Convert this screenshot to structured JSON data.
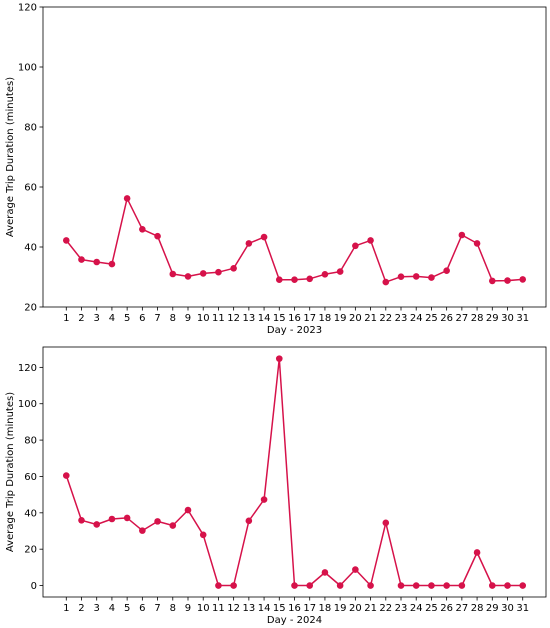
{
  "chart_data": [
    {
      "type": "line",
      "xlabel": "Day - 2023",
      "ylabel": "Average Trip Duration (minutes)",
      "ylim": [
        20,
        120
      ],
      "yticks": [
        20,
        40,
        60,
        80,
        100,
        120
      ],
      "color": "#d6124a",
      "x": [
        1,
        2,
        3,
        4,
        5,
        6,
        7,
        8,
        9,
        10,
        11,
        12,
        13,
        14,
        15,
        16,
        17,
        18,
        19,
        20,
        21,
        22,
        23,
        24,
        25,
        26,
        27,
        28,
        29,
        30,
        31
      ],
      "y": [
        42.2,
        35.8,
        35.0,
        34.3,
        56.2,
        45.9,
        43.6,
        31.0,
        30.2,
        31.2,
        31.6,
        32.9,
        41.2,
        43.3,
        29.1,
        29.1,
        29.4,
        30.9,
        31.8,
        40.4,
        42.2,
        28.3,
        30.1,
        30.2,
        29.8,
        32.1,
        44.0,
        41.2,
        28.7,
        28.8,
        29.2
      ]
    },
    {
      "type": "line",
      "xlabel": "Day - 2024",
      "ylabel": "Average Trip Duration (minutes)",
      "ylim": [
        -6.3,
        131.2
      ],
      "yticks": [
        0,
        20,
        40,
        60,
        80,
        100,
        120
      ],
      "color": "#d6124a",
      "x": [
        1,
        2,
        3,
        4,
        5,
        6,
        7,
        8,
        9,
        10,
        11,
        12,
        13,
        14,
        15,
        16,
        17,
        18,
        19,
        20,
        21,
        22,
        23,
        24,
        25,
        26,
        27,
        28,
        29,
        30,
        31
      ],
      "y": [
        60.5,
        35.9,
        33.6,
        36.6,
        37.2,
        30.2,
        35.3,
        33.0,
        41.5,
        27.9,
        0,
        0,
        35.6,
        47.3,
        124.8,
        0,
        0,
        7.2,
        0,
        8.8,
        0,
        34.5,
        0,
        0,
        0,
        0,
        0,
        18.2,
        0,
        0,
        0
      ]
    }
  ]
}
